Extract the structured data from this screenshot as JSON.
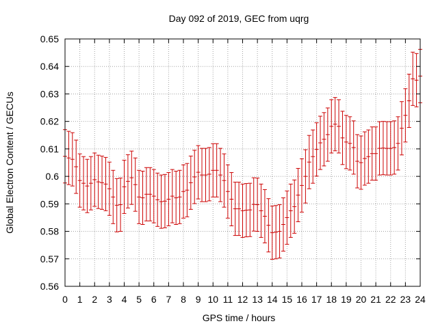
{
  "chart_data": {
    "type": "scatter",
    "title": "Day 092 of 2019, GEC from uqrg",
    "xlabel": "GPS time / hours",
    "ylabel": "Global Electron Content / GECUs",
    "xlim": [
      0,
      24
    ],
    "ylim": [
      0.56,
      0.65
    ],
    "xticks": [
      "0",
      "1",
      "2",
      "3",
      "4",
      "5",
      "6",
      "7",
      "8",
      "9",
      "10",
      "11",
      "12",
      "13",
      "14",
      "15",
      "16",
      "17",
      "18",
      "19",
      "20",
      "21",
      "22",
      "23",
      "24"
    ],
    "yticks": [
      "0.56",
      "0.57",
      "0.58",
      "0.59",
      "0.6",
      "0.61",
      "0.62",
      "0.63",
      "0.64",
      "0.65"
    ],
    "grid": true,
    "legend": "none",
    "colors": {
      "series": "#cc0000",
      "grid": "#a0a0a0",
      "axis": "#000000"
    },
    "series": [
      {
        "marker": "errorbar",
        "x": [
          0.0,
          0.25,
          0.5,
          0.75,
          1.0,
          1.25,
          1.5,
          1.75,
          2.0,
          2.25,
          2.5,
          2.75,
          3.0,
          3.25,
          3.5,
          3.75,
          4.0,
          4.25,
          4.5,
          4.75,
          5.0,
          5.25,
          5.5,
          5.75,
          6.0,
          6.25,
          6.5,
          6.75,
          7.0,
          7.25,
          7.5,
          7.75,
          8.0,
          8.25,
          8.5,
          8.75,
          9.0,
          9.25,
          9.5,
          9.75,
          10.0,
          10.25,
          10.5,
          10.75,
          11.0,
          11.25,
          11.5,
          11.75,
          12.0,
          12.25,
          12.5,
          12.75,
          13.0,
          13.25,
          13.5,
          13.75,
          14.0,
          14.25,
          14.5,
          14.75,
          15.0,
          15.25,
          15.5,
          15.75,
          16.0,
          16.25,
          16.5,
          16.75,
          17.0,
          17.25,
          17.5,
          17.75,
          18.0,
          18.25,
          18.5,
          18.75,
          19.0,
          19.25,
          19.5,
          19.75,
          20.0,
          20.25,
          20.5,
          20.75,
          21.0,
          21.25,
          21.5,
          21.75,
          22.0,
          22.25,
          22.5,
          22.75,
          23.0,
          23.25,
          23.5,
          23.75,
          24.0
        ],
        "y": [
          0.6073,
          0.6067,
          0.6062,
          0.6035,
          0.5985,
          0.5975,
          0.5965,
          0.5975,
          0.5988,
          0.598,
          0.5977,
          0.5972,
          0.5955,
          0.5925,
          0.5895,
          0.5897,
          0.5962,
          0.5982,
          0.5995,
          0.597,
          0.5925,
          0.5922,
          0.5935,
          0.5935,
          0.5928,
          0.5915,
          0.5908,
          0.591,
          0.5917,
          0.5928,
          0.5922,
          0.5925,
          0.5945,
          0.595,
          0.5977,
          0.5998,
          0.6015,
          0.6005,
          0.6005,
          0.6008,
          0.6022,
          0.6022,
          0.6005,
          0.5985,
          0.5945,
          0.5917,
          0.5882,
          0.5882,
          0.5875,
          0.5877,
          0.5878,
          0.5898,
          0.5897,
          0.5875,
          0.5855,
          0.5822,
          0.5795,
          0.5797,
          0.58,
          0.5825,
          0.585,
          0.5875,
          0.589,
          0.5932,
          0.5967,
          0.6,
          0.6052,
          0.6072,
          0.6098,
          0.6122,
          0.6135,
          0.6152,
          0.6182,
          0.619,
          0.6182,
          0.614,
          0.6125,
          0.612,
          0.6105,
          0.6055,
          0.605,
          0.6065,
          0.6072,
          0.6083,
          0.6083,
          0.6102,
          0.6103,
          0.6102,
          0.6102,
          0.6105,
          0.612,
          0.6175,
          0.6222,
          0.6275,
          0.6355,
          0.635,
          0.6365
        ],
        "err": 0.0097
      }
    ]
  }
}
